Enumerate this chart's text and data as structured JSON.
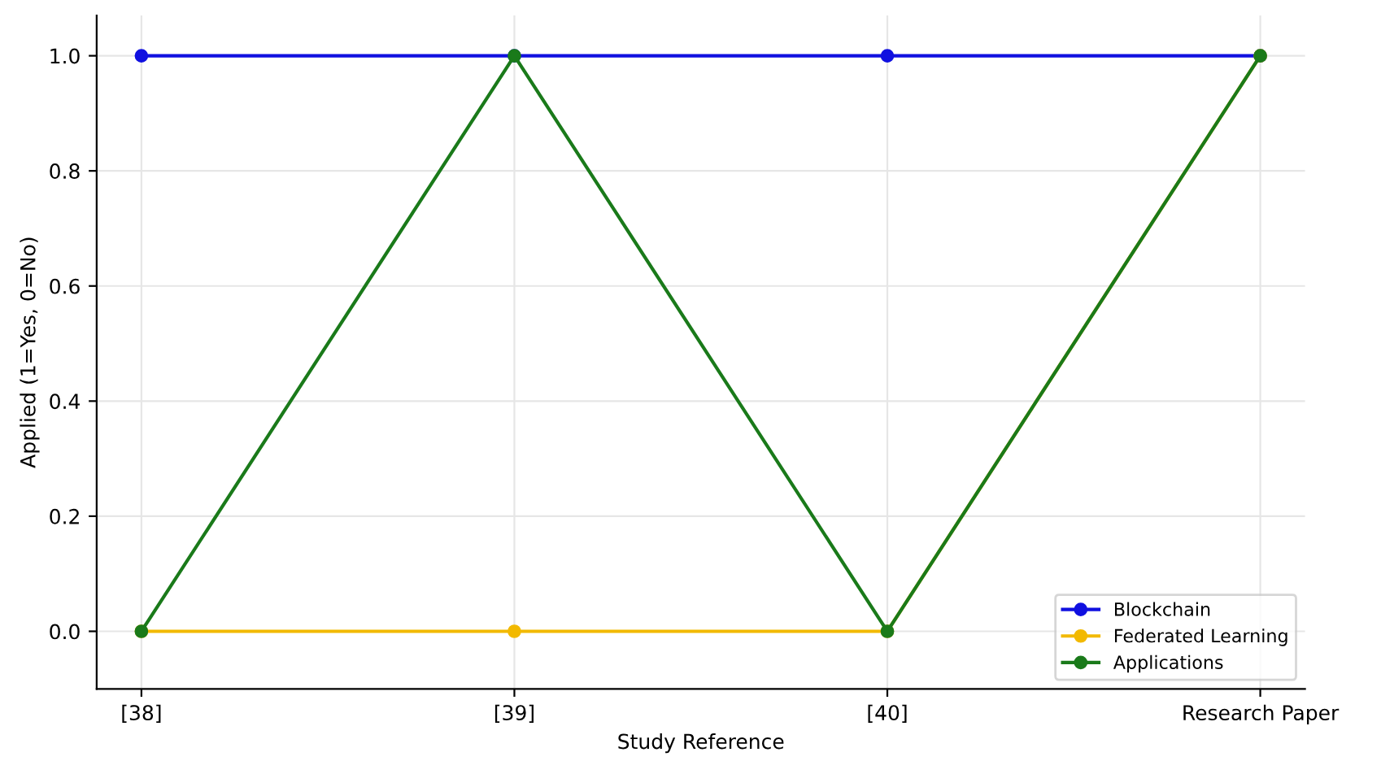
{
  "chart_data": {
    "type": "line",
    "xlabel": "Study Reference",
    "ylabel": "Applied (1=Yes, 0=No)",
    "categories": [
      "[38]",
      "[39]",
      "[40]",
      "Research Paper"
    ],
    "series": [
      {
        "name": "Blockchain",
        "color": "#1010e0",
        "values": [
          1,
          1,
          1,
          1
        ]
      },
      {
        "name": "Federated Learning",
        "color": "#f2b900",
        "values": [
          0,
          0,
          0,
          1
        ]
      },
      {
        "name": "Applications",
        "color": "#1a7a1a",
        "values": [
          0,
          1,
          0,
          1
        ]
      }
    ],
    "ylim": [
      -0.1,
      1.07
    ],
    "yticks": [
      {
        "value": 0,
        "label": "0.0"
      },
      {
        "value": 0.2,
        "label": "0.2"
      },
      {
        "value": 0.4,
        "label": "0.4"
      },
      {
        "value": 0.6,
        "label": "0.6"
      },
      {
        "value": 0.8,
        "label": "0.8"
      },
      {
        "value": 1,
        "label": "1.0"
      }
    ],
    "grid": true,
    "legend": "bottom right",
    "marker": "circle",
    "line_style": "solid"
  }
}
